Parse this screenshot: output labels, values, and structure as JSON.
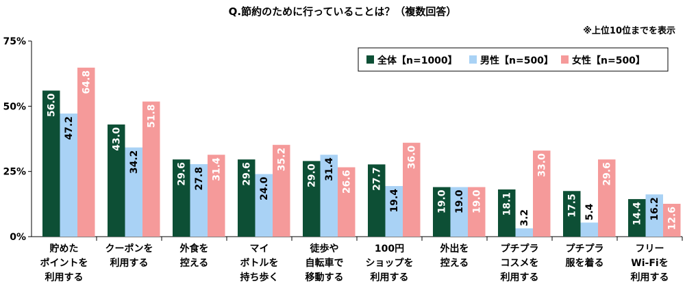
{
  "header": {
    "title": "Q.節約のために行っていることは？（複数回答）",
    "note": "※上位10位までを表示"
  },
  "colors": {
    "全体": "#0d4f35",
    "男性": "#a9d2f5",
    "女性": "#f59a9a"
  },
  "chart_data": {
    "type": "bar",
    "title": "Q.節約のために行っていることは？（複数回答）",
    "categories": [
      "貯めた\nポイントを\n利用する",
      "クーポンを\n利用する",
      "外食を\n控える",
      "マイ\nボトルを\n持ち歩く",
      "徒歩や\n自転車で\n移動する",
      "100円\nショップを\n利用する",
      "外出を\n控える",
      "プチプラ\nコスメを\n利用する",
      "プチプラ\n服を着る",
      "フリー\nWi-Fiを\n利用する"
    ],
    "series": [
      {
        "name": "全体【n=1000】",
        "values": [
          56.0,
          43.0,
          29.6,
          29.6,
          29.0,
          27.7,
          19.0,
          18.1,
          17.5,
          14.4
        ]
      },
      {
        "name": "男性【n=500】",
        "values": [
          47.2,
          34.2,
          27.8,
          24.0,
          31.4,
          19.4,
          19.0,
          3.2,
          5.4,
          16.2
        ]
      },
      {
        "name": "女性【n=500】",
        "values": [
          64.8,
          51.8,
          31.4,
          35.2,
          26.6,
          36.0,
          19.0,
          33.0,
          29.6,
          12.6
        ]
      }
    ],
    "value_labels": [
      [
        "56.0",
        "43.0",
        "29.6",
        "29.6",
        "29.0",
        "27.7",
        "19.0",
        "18.1",
        "17.5",
        "14.4"
      ],
      [
        "47.2",
        "34.2",
        "27.8",
        "24.0",
        "31.4",
        "19.4",
        "19.0",
        "3.2",
        "5.4",
        "16.2"
      ],
      [
        "64.8",
        "51.8",
        "31.4",
        "35.2",
        "26.6",
        "36.0",
        "19.0",
        "33.0",
        "29.6",
        "12.6"
      ]
    ],
    "ylim": [
      0,
      75
    ],
    "yticks": [
      0,
      25,
      50,
      75
    ],
    "ytick_labels": [
      "0%",
      "25%",
      "50%",
      "75%"
    ],
    "grid": false,
    "legend_position": "top-right",
    "xlabel": "",
    "ylabel": ""
  }
}
